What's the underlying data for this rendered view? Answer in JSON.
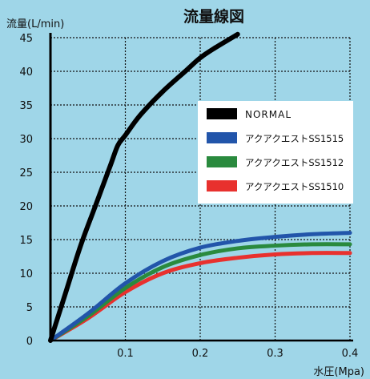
{
  "colors": {
    "background": "#9fd6e8",
    "grid": "#111111",
    "axis": "#000000",
    "legend_box": "#ffffff"
  },
  "chart_data": {
    "type": "line",
    "title": "流量線図",
    "ylabel": "流量(L/min)",
    "xlabel": "水圧(Mpa)",
    "xlim": [
      0,
      0.4
    ],
    "ylim": [
      0,
      45
    ],
    "xticks": [
      0.1,
      0.2,
      0.3,
      0.4
    ],
    "xtick_labels": [
      "0.1",
      "0.2",
      "0.3",
      "0.4"
    ],
    "yticks": [
      0,
      5,
      10,
      15,
      20,
      25,
      30,
      35,
      40,
      45
    ],
    "ytick_labels": [
      "0",
      "5",
      "10",
      "15",
      "20",
      "25",
      "30",
      "35",
      "40",
      "45"
    ],
    "grid": true,
    "legend_position": "right",
    "series": [
      {
        "name": "NORMAL",
        "color": "#000000",
        "points": [
          [
            0,
            0
          ],
          [
            0.02,
            7
          ],
          [
            0.04,
            14
          ],
          [
            0.06,
            20
          ],
          [
            0.08,
            26
          ],
          [
            0.09,
            29
          ],
          [
            0.1,
            30.5
          ],
          [
            0.12,
            33.5
          ],
          [
            0.15,
            37
          ],
          [
            0.18,
            40
          ],
          [
            0.2,
            42
          ],
          [
            0.22,
            43.5
          ],
          [
            0.25,
            45.5
          ]
        ]
      },
      {
        "name": "アクアクエストSS1515",
        "color": "#2255aa",
        "points": [
          [
            0,
            0
          ],
          [
            0.05,
            4
          ],
          [
            0.1,
            8.5
          ],
          [
            0.15,
            11.8
          ],
          [
            0.2,
            13.8
          ],
          [
            0.25,
            14.8
          ],
          [
            0.3,
            15.4
          ],
          [
            0.35,
            15.8
          ],
          [
            0.4,
            16
          ]
        ]
      },
      {
        "name": "アクアクエストSS1512",
        "color": "#2a8a3e",
        "points": [
          [
            0,
            0
          ],
          [
            0.05,
            3.6
          ],
          [
            0.1,
            7.8
          ],
          [
            0.15,
            10.9
          ],
          [
            0.2,
            12.7
          ],
          [
            0.25,
            13.7
          ],
          [
            0.3,
            14.1
          ],
          [
            0.35,
            14.3
          ],
          [
            0.4,
            14.3
          ]
        ]
      },
      {
        "name": "アクアクエストSS1510",
        "color": "#e8312e",
        "points": [
          [
            0,
            0
          ],
          [
            0.05,
            3.3
          ],
          [
            0.1,
            7.2
          ],
          [
            0.15,
            10
          ],
          [
            0.2,
            11.5
          ],
          [
            0.25,
            12.3
          ],
          [
            0.3,
            12.8
          ],
          [
            0.35,
            13
          ],
          [
            0.4,
            13
          ]
        ]
      }
    ]
  }
}
